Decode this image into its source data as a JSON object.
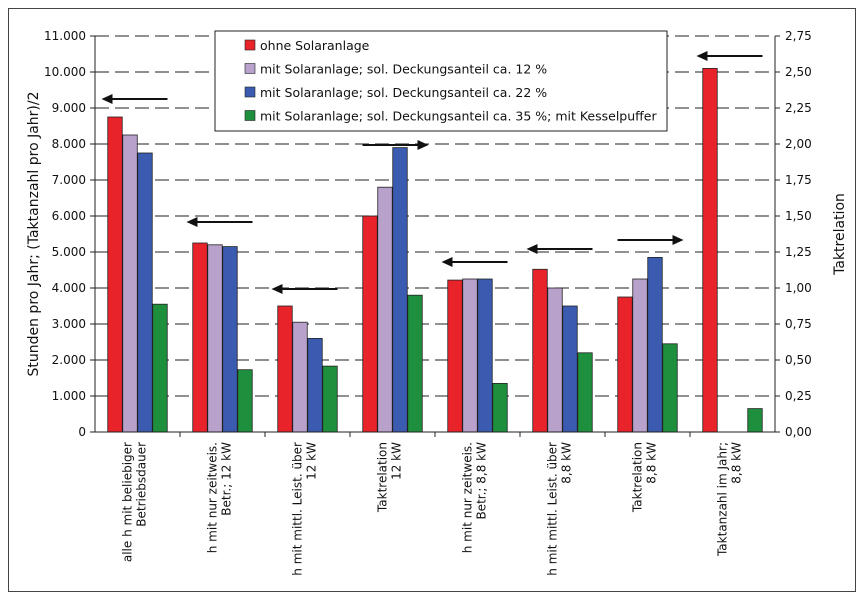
{
  "chart_data": {
    "type": "bar",
    "ylabel": "Stunden pro Jahr; (Taktanzahl pro Jahr)/2",
    "y2label": "Taktrelation",
    "ylim": [
      0,
      11000
    ],
    "y2lim": [
      0,
      2.75
    ],
    "yticks": [
      "0",
      "1.000",
      "2.000",
      "3.000",
      "4.000",
      "5.000",
      "6.000",
      "7.000",
      "8.000",
      "9.000",
      "10.000",
      "11.000"
    ],
    "y2ticks": [
      "0,00",
      "0,25",
      "0,50",
      "0,75",
      "1,00",
      "1,25",
      "1,50",
      "1,75",
      "2,00",
      "2,25",
      "2,50",
      "2,75"
    ],
    "grid": "horizontal dashed",
    "legend_position": "top",
    "categories": [
      [
        "alle h mit beliebiger",
        "Betriebsdauer"
      ],
      [
        "h mit nur zeitweis.",
        "Betr.; 12 kW"
      ],
      [
        "h mit mittl. Leist. über",
        "12 kW"
      ],
      [
        "Taktrelation",
        "12 kW"
      ],
      [
        "h mit nur zeitweis.",
        "Betr.; 8,8 kW"
      ],
      [
        "h mit mittl. Leist. über",
        "8,8 kW"
      ],
      [
        "Taktrelation",
        "8,8 kW"
      ],
      [
        "Taktanzahl im Jahr;",
        "8,8 kW"
      ]
    ],
    "axis_side": [
      "left",
      "left",
      "left",
      "right",
      "left",
      "left",
      "right",
      "left"
    ],
    "series": [
      {
        "name": "ohne Solaranlage",
        "color": "#e8232a",
        "values": [
          8750,
          5250,
          3500,
          6000,
          4220,
          4520,
          3750,
          10100
        ]
      },
      {
        "name": "mit Solaranlage; sol. Deckungsanteil ca. 12 %",
        "color": "#b8a2cc",
        "values": [
          8250,
          5200,
          3050,
          6800,
          4250,
          4000,
          4250,
          null
        ]
      },
      {
        "name": "mit Solaranlage; sol. Deckungsanteil ca. 22 %",
        "color": "#3a5bb0",
        "values": [
          7750,
          5150,
          2600,
          7900,
          4250,
          3500,
          4850,
          null
        ]
      },
      {
        "name": "mit Solaranlage; sol. Deckungsanteil ca. 35 %; mit Kesselpuffer",
        "color": "#1e8f3c",
        "values": [
          3550,
          1730,
          1830,
          3800,
          1350,
          2200,
          2450,
          650
        ]
      }
    ]
  }
}
